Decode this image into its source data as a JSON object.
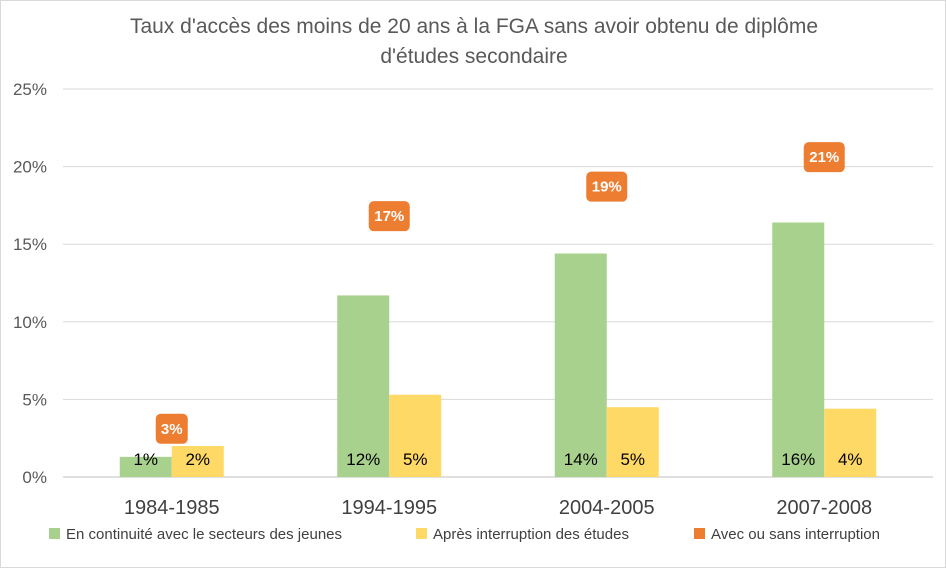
{
  "chart_data": {
    "type": "bar",
    "title_lines": [
      "Taux d'accès des moins de 20 ans à la FGA sans avoir obtenu de diplôme",
      "d'études secondaire"
    ],
    "categories": [
      "1984-1985",
      "1994-1995",
      "2004-2005",
      "2007-2008"
    ],
    "series": [
      {
        "name": "En continuité avec le secteurs des jeunes",
        "values": [
          1.3,
          11.7,
          14.4,
          16.4
        ],
        "labels": [
          "1%",
          "12%",
          "14%",
          "16%"
        ],
        "color": "#a9d18e"
      },
      {
        "name": "Après interruption des études",
        "values": [
          2.0,
          5.3,
          4.5,
          4.4
        ],
        "labels": [
          "2%",
          "5%",
          "5%",
          "4%"
        ],
        "color": "#ffd966"
      },
      {
        "name": "Avec ou sans interruption",
        "values": [
          3.3,
          17.0,
          18.9,
          20.8
        ],
        "labels": [
          "3%",
          "17%",
          "19%",
          "21%"
        ],
        "color": "#ed7d31",
        "display": "label-only"
      }
    ],
    "yticks": [
      "0%",
      "5%",
      "10%",
      "15%",
      "20%",
      "25%"
    ],
    "ylim": [
      0,
      25
    ],
    "grid": true,
    "legend": "bottom"
  }
}
